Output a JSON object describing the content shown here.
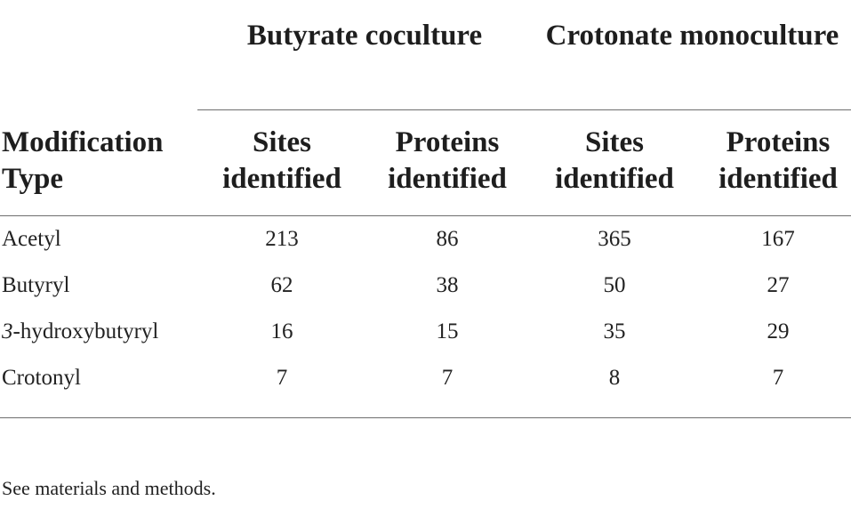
{
  "table": {
    "group_headers": [
      "Butyrate coculture",
      "Crotonate monoculture"
    ],
    "row_header": "Modification Type",
    "column_headers": [
      "Sites identified",
      "Proteins identified",
      "Sites identified",
      "Proteins identified"
    ],
    "rows": [
      {
        "label": "Acetyl",
        "values": [
          "213",
          "86",
          "365",
          "167"
        ]
      },
      {
        "label": "Butyryl",
        "values": [
          "62",
          "38",
          "50",
          "27"
        ]
      },
      {
        "label_prefix": "3",
        "label_rest": "-hydroxybutyryl",
        "values": [
          "16",
          "15",
          "35",
          "29"
        ]
      },
      {
        "label": "Crotonyl",
        "values": [
          "7",
          "7",
          "8",
          "7"
        ]
      }
    ]
  },
  "footnote": "See materials and methods."
}
